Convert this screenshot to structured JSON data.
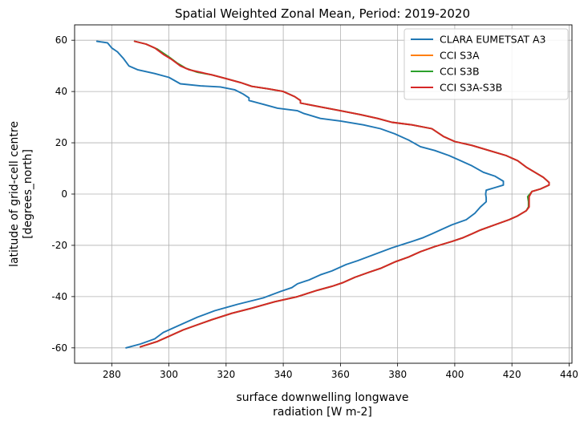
{
  "chart_data": {
    "type": "line",
    "title": "Spatial Weighted Zonal Mean, Period: 2019-2020",
    "xlabel": [
      "surface downwelling longwave",
      "radiation [W m-2]"
    ],
    "ylabel": [
      "latitude of grid-cell centre",
      "[degrees_north]"
    ],
    "xlim": [
      267,
      441
    ],
    "ylim": [
      -66,
      66
    ],
    "xticks": [
      280,
      300,
      320,
      340,
      360,
      380,
      400,
      420,
      440
    ],
    "yticks": [
      -60,
      -40,
      -20,
      0,
      20,
      40,
      60
    ],
    "grid": true,
    "legend_position": "top-right",
    "series": [
      {
        "name": "CLARA EUMETSAT A3",
        "color": "#1f77b4",
        "points": [
          [
            274.8,
            59.6
          ],
          [
            278.5,
            59
          ],
          [
            280,
            57
          ],
          [
            282,
            55.5
          ],
          [
            284,
            53
          ],
          [
            286,
            50
          ],
          [
            289,
            48.5
          ],
          [
            295,
            47
          ],
          [
            300,
            45.5
          ],
          [
            304,
            43
          ],
          [
            311,
            42.2
          ],
          [
            318,
            41.8
          ],
          [
            323,
            40.7
          ],
          [
            326,
            39
          ],
          [
            328,
            37.5
          ],
          [
            328,
            36.5
          ],
          [
            333,
            35
          ],
          [
            338,
            33.5
          ],
          [
            345,
            32.5
          ],
          [
            347,
            31.5
          ],
          [
            353,
            29.5
          ],
          [
            360,
            28.5
          ],
          [
            368,
            27
          ],
          [
            374,
            25.5
          ],
          [
            379,
            23.5
          ],
          [
            384,
            21
          ],
          [
            388,
            18.5
          ],
          [
            393,
            17
          ],
          [
            398,
            15
          ],
          [
            401,
            13.5
          ],
          [
            406,
            11
          ],
          [
            410,
            8.5
          ],
          [
            414,
            7
          ],
          [
            417,
            5
          ],
          [
            417,
            3.5
          ],
          [
            414,
            2.5
          ],
          [
            411,
            1.5
          ],
          [
            410.8,
            0
          ],
          [
            411,
            -1.5
          ],
          [
            411,
            -3
          ],
          [
            409,
            -5
          ],
          [
            407,
            -7.5
          ],
          [
            404,
            -10
          ],
          [
            399,
            -12
          ],
          [
            395,
            -14
          ],
          [
            392,
            -15.5
          ],
          [
            389,
            -17
          ],
          [
            385,
            -18.5
          ],
          [
            378,
            -21
          ],
          [
            372,
            -23.5
          ],
          [
            366,
            -26
          ],
          [
            362,
            -27.5
          ],
          [
            357,
            -30
          ],
          [
            353,
            -31.5
          ],
          [
            349,
            -33.5
          ],
          [
            345,
            -35
          ],
          [
            343,
            -36.5
          ],
          [
            339,
            -38
          ],
          [
            333,
            -40.5
          ],
          [
            324,
            -43
          ],
          [
            316,
            -45.5
          ],
          [
            310,
            -48
          ],
          [
            303,
            -51.5
          ],
          [
            298,
            -54
          ],
          [
            295,
            -56.5
          ],
          [
            290,
            -58.5
          ],
          [
            285,
            -60
          ]
        ]
      },
      {
        "name": "CCI S3A",
        "color": "#ff7f0e",
        "points": [
          [
            288,
            59.6
          ],
          [
            292,
            58.5
          ],
          [
            296,
            56.5
          ],
          [
            300,
            53.5
          ],
          [
            303,
            51
          ],
          [
            306,
            49
          ],
          [
            310,
            47.5
          ],
          [
            315,
            46.5
          ],
          [
            320,
            45
          ],
          [
            325,
            43.5
          ],
          [
            329,
            42
          ],
          [
            335,
            41
          ],
          [
            340,
            40
          ],
          [
            344,
            38
          ],
          [
            346,
            36.5
          ],
          [
            346,
            35.5
          ],
          [
            353,
            34
          ],
          [
            360,
            32.5
          ],
          [
            367,
            31
          ],
          [
            373,
            29.5
          ],
          [
            378,
            28
          ],
          [
            385,
            27
          ],
          [
            392,
            25.5
          ],
          [
            396,
            22.5
          ],
          [
            400,
            20.5
          ],
          [
            406,
            19
          ],
          [
            412,
            17
          ],
          [
            418,
            15
          ],
          [
            422,
            13
          ],
          [
            425,
            10.5
          ],
          [
            428,
            8.5
          ],
          [
            431,
            6.5
          ],
          [
            433,
            4.5
          ],
          [
            433,
            3.5
          ],
          [
            430,
            2
          ],
          [
            427,
            1
          ],
          [
            426,
            -1
          ],
          [
            426,
            -3
          ],
          [
            426,
            -5
          ],
          [
            425,
            -6.5
          ],
          [
            422,
            -8.5
          ],
          [
            419,
            -10
          ],
          [
            414,
            -12
          ],
          [
            409,
            -14
          ],
          [
            406,
            -15.5
          ],
          [
            403,
            -17
          ],
          [
            399,
            -18.5
          ],
          [
            393,
            -20.5
          ],
          [
            388,
            -22.5
          ],
          [
            384,
            -24.5
          ],
          [
            379,
            -26.5
          ],
          [
            374,
            -29
          ],
          [
            370,
            -30.5
          ],
          [
            365,
            -32.5
          ],
          [
            361,
            -34.5
          ],
          [
            357,
            -36
          ],
          [
            352,
            -37.5
          ],
          [
            345,
            -40
          ],
          [
            337,
            -42
          ],
          [
            329,
            -44.5
          ],
          [
            322,
            -46.5
          ],
          [
            315,
            -49
          ],
          [
            310,
            -51
          ],
          [
            305,
            -53
          ],
          [
            300,
            -55.5
          ],
          [
            296,
            -57.5
          ],
          [
            290,
            -59.6
          ]
        ]
      },
      {
        "name": "CCI S3B",
        "color": "#2ca02c",
        "points": [
          [
            288,
            59.6
          ],
          [
            292,
            58.5
          ],
          [
            296,
            56.5
          ],
          [
            300,
            53.5
          ],
          [
            303,
            51
          ],
          [
            306,
            49
          ],
          [
            310,
            47.5
          ],
          [
            315,
            46.5
          ],
          [
            320,
            45
          ],
          [
            325,
            43.5
          ],
          [
            329,
            42
          ],
          [
            335,
            41
          ],
          [
            340,
            40
          ],
          [
            344,
            38
          ],
          [
            346,
            36.5
          ],
          [
            346,
            35.5
          ],
          [
            353,
            34
          ],
          [
            360,
            32.5
          ],
          [
            367,
            31
          ],
          [
            373,
            29.5
          ],
          [
            378,
            28
          ],
          [
            385,
            27
          ],
          [
            392,
            25.5
          ],
          [
            396,
            22.5
          ],
          [
            400,
            20.5
          ],
          [
            406,
            19
          ],
          [
            412,
            17
          ],
          [
            418,
            15
          ],
          [
            422,
            13
          ],
          [
            425,
            10.5
          ],
          [
            428,
            8.5
          ],
          [
            431,
            6.5
          ],
          [
            433,
            4.5
          ],
          [
            433,
            3.5
          ],
          [
            430,
            2
          ],
          [
            427,
            1
          ],
          [
            425.5,
            -1
          ],
          [
            425.8,
            -3
          ],
          [
            425.8,
            -5
          ],
          [
            425,
            -6.5
          ],
          [
            422,
            -8.5
          ],
          [
            419,
            -10
          ],
          [
            414,
            -12
          ],
          [
            409,
            -14
          ],
          [
            406,
            -15.5
          ],
          [
            403,
            -17
          ],
          [
            399,
            -18.5
          ],
          [
            393,
            -20.5
          ],
          [
            388,
            -22.5
          ],
          [
            384,
            -24.5
          ],
          [
            379,
            -26.5
          ],
          [
            374,
            -29
          ],
          [
            370,
            -30.5
          ],
          [
            365,
            -32.5
          ],
          [
            361,
            -34.5
          ],
          [
            357,
            -36
          ],
          [
            352,
            -37.5
          ],
          [
            345,
            -40
          ],
          [
            337,
            -42
          ],
          [
            329,
            -44.5
          ],
          [
            322,
            -46.5
          ],
          [
            315,
            -49
          ],
          [
            310,
            -51
          ],
          [
            305,
            -53
          ],
          [
            300,
            -55.5
          ],
          [
            296,
            -57.5
          ],
          [
            290,
            -59.6
          ]
        ]
      },
      {
        "name": "CCI S3A-S3B",
        "color": "#d62728",
        "points": [
          [
            288,
            59.6
          ],
          [
            292,
            58.5
          ],
          [
            295,
            57
          ],
          [
            298,
            54.5
          ],
          [
            301,
            52.5
          ],
          [
            304,
            50
          ],
          [
            307,
            48.5
          ],
          [
            311,
            47.5
          ],
          [
            315,
            46.5
          ],
          [
            320,
            45
          ],
          [
            325,
            43.5
          ],
          [
            329,
            42
          ],
          [
            335,
            41
          ],
          [
            340,
            40
          ],
          [
            344,
            38
          ],
          [
            346,
            36.5
          ],
          [
            346,
            35.5
          ],
          [
            353,
            34
          ],
          [
            360,
            32.5
          ],
          [
            367,
            31
          ],
          [
            373,
            29.5
          ],
          [
            378,
            28
          ],
          [
            385,
            27
          ],
          [
            392,
            25.5
          ],
          [
            396,
            22.5
          ],
          [
            400,
            20.5
          ],
          [
            406,
            19
          ],
          [
            412,
            17
          ],
          [
            418,
            15
          ],
          [
            422,
            13
          ],
          [
            425,
            10.5
          ],
          [
            428,
            8.5
          ],
          [
            431,
            6.5
          ],
          [
            433,
            4.5
          ],
          [
            433,
            3.5
          ],
          [
            430,
            2
          ],
          [
            427,
            1
          ],
          [
            426,
            -1
          ],
          [
            426,
            -3
          ],
          [
            426,
            -5
          ],
          [
            425,
            -6.5
          ],
          [
            422,
            -8.5
          ],
          [
            419,
            -10
          ],
          [
            414,
            -12
          ],
          [
            409,
            -14
          ],
          [
            406,
            -15.5
          ],
          [
            403,
            -17
          ],
          [
            399,
            -18.5
          ],
          [
            393,
            -20.5
          ],
          [
            388,
            -22.5
          ],
          [
            384,
            -24.5
          ],
          [
            379,
            -26.5
          ],
          [
            374,
            -29
          ],
          [
            370,
            -30.5
          ],
          [
            365,
            -32.5
          ],
          [
            361,
            -34.5
          ],
          [
            357,
            -36
          ],
          [
            352,
            -37.5
          ],
          [
            345,
            -40
          ],
          [
            337,
            -42
          ],
          [
            329,
            -44.5
          ],
          [
            322,
            -46.5
          ],
          [
            315,
            -49
          ],
          [
            310,
            -51
          ],
          [
            305,
            -53
          ],
          [
            300,
            -55.5
          ],
          [
            296,
            -57.5
          ],
          [
            290,
            -59.6
          ]
        ]
      }
    ]
  }
}
